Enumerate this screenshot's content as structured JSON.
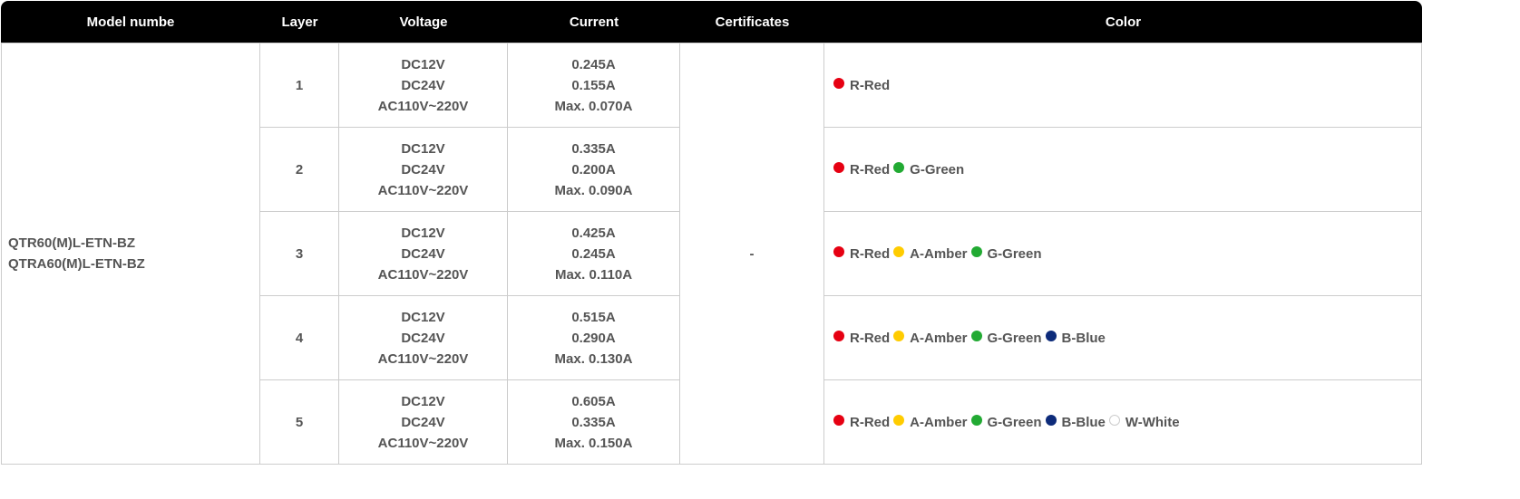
{
  "headers": {
    "model": "Model numbe",
    "layer": "Layer",
    "voltage": "Voltage",
    "current": "Current",
    "certificates": "Certificates",
    "color": "Color"
  },
  "model_numbers": [
    "QTR60(M)L-ETN-BZ",
    "QTRA60(M)L-ETN-BZ"
  ],
  "certificates": "-",
  "colors": {
    "red": {
      "label": "R-Red",
      "hex": "#e60012"
    },
    "amber": {
      "label": "A-Amber",
      "hex": "#ffcc00"
    },
    "green": {
      "label": "G-Green",
      "hex": "#22aa33"
    },
    "blue": {
      "label": "B-Blue",
      "hex": "#0d2b7a"
    },
    "white": {
      "label": "W-White",
      "hex": "#ffffff"
    }
  },
  "rows": [
    {
      "layer": "1",
      "voltage": [
        "DC12V",
        "DC24V",
        "AC110V~220V"
      ],
      "current": [
        "0.245A",
        "0.155A",
        "Max. 0.070A"
      ],
      "colors": [
        "R-Red"
      ]
    },
    {
      "layer": "2",
      "voltage": [
        "DC12V",
        "DC24V",
        "AC110V~220V"
      ],
      "current": [
        "0.335A",
        "0.200A",
        "Max. 0.090A"
      ],
      "colors": [
        "R-Red",
        "G-Green"
      ]
    },
    {
      "layer": "3",
      "voltage": [
        "DC12V",
        "DC24V",
        "AC110V~220V"
      ],
      "current": [
        "0.425A",
        "0.245A",
        "Max. 0.110A"
      ],
      "colors": [
        "R-Red",
        "A-Amber",
        "G-Green"
      ]
    },
    {
      "layer": "4",
      "voltage": [
        "DC12V",
        "DC24V",
        "AC110V~220V"
      ],
      "current": [
        "0.515A",
        "0.290A",
        "Max. 0.130A"
      ],
      "colors": [
        "R-Red",
        "A-Amber",
        "G-Green",
        "B-Blue"
      ]
    },
    {
      "layer": "5",
      "voltage": [
        "DC12V",
        "DC24V",
        "AC110V~220V"
      ],
      "current": [
        "0.605A",
        "0.335A",
        "Max. 0.150A"
      ],
      "colors": [
        "R-Red",
        "A-Amber",
        "G-Green",
        "B-Blue",
        "W-White"
      ]
    }
  ]
}
